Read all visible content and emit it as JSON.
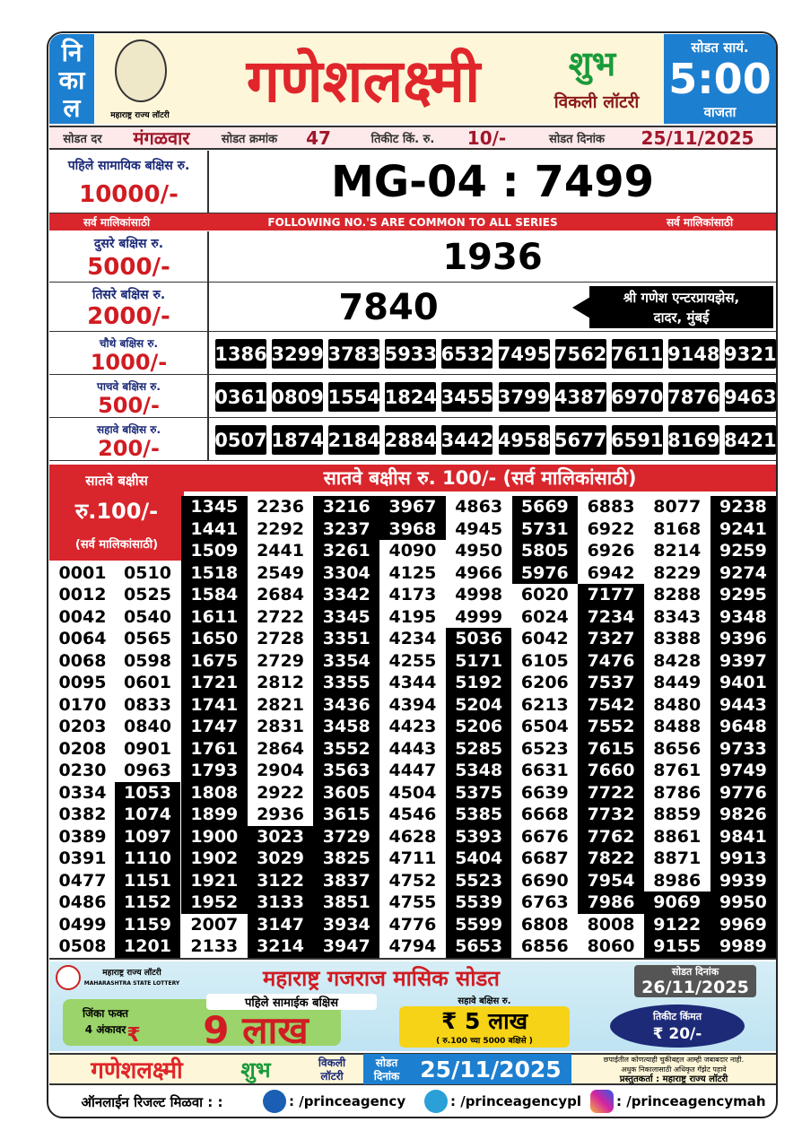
{
  "header": {
    "nikal": [
      "नि",
      "का",
      "ल"
    ],
    "logo_caption": "महाराष्ट्र राज्य लॉटरी",
    "title": "गणेशलक्ष्मी",
    "shubh": "शुभ",
    "weekly": "विकली लॉटरी",
    "draw_time_label": "सोडत सायं.",
    "draw_time": "5:00",
    "draw_time_suffix": "वाजता"
  },
  "info": [
    {
      "label": "सोडत दर",
      "value": "मंगळवार"
    },
    {
      "label": "सोडत क्रमांक",
      "value": "47"
    },
    {
      "label": "तिकीट किं. रु.",
      "value": "10/-"
    },
    {
      "label": "सोडत दिनांक",
      "value": "25/11/2025"
    }
  ],
  "banner": [
    "सर्व मालिकांसाठी",
    "FOLLOWING NO.'S ARE COMMON TO ALL SERIES",
    "सर्व मालिकांसाठी"
  ],
  "prizes": [
    {
      "label": "पहिले सामायिक बक्षिस रु.",
      "amount": "10000/-",
      "number": "MG-04 : 7499"
    },
    {
      "label": "दुसरे बक्षिस रु.",
      "amount": "5000/-",
      "number": "1936"
    },
    {
      "label": "तिसरे बक्षिस रु.",
      "amount": "2000/-",
      "number": "7840",
      "agent": [
        "श्री गणेश एन्टरप्रायझेस,",
        "दादर, मुंबई"
      ]
    },
    {
      "label": "चौथे बक्षिस रु.",
      "amount": "1000/-",
      "numbers": [
        "1386",
        "3299",
        "3783",
        "5933",
        "6532",
        "7495",
        "7562",
        "7611",
        "9148",
        "9321"
      ]
    },
    {
      "label": "पाचवे बक्षिस रु.",
      "amount": "500/-",
      "numbers": [
        "0361",
        "0809",
        "1554",
        "1824",
        "3455",
        "3799",
        "4387",
        "6970",
        "7876",
        "9463"
      ]
    },
    {
      "label": "सहावे बक्षिस रु.",
      "amount": "200/-",
      "numbers": [
        "0507",
        "1874",
        "2184",
        "2884",
        "3442",
        "4958",
        "5677",
        "6591",
        "8169",
        "8421"
      ]
    }
  ],
  "seventh_prize": {
    "title": "सातवे बक्षीस रु. 100/- (सर्व मालिकांसाठी)",
    "label": [
      "सातवे बक्षीस",
      "रु.100/-",
      "(सर्व मालिकांसाठी)"
    ],
    "columns": [
      [
        "0001",
        "0012",
        "0042",
        "0064",
        "0068",
        "0095",
        "0170",
        "0203",
        "0208",
        "0230",
        "0334",
        "0382",
        "0389",
        "0391",
        "0477",
        "0486",
        "0499",
        "0508"
      ],
      [
        "0510",
        "0525",
        "0540",
        "0565",
        "0598",
        "0601",
        "0833",
        "0840",
        "0901",
        "0963",
        "1053",
        "1074",
        "1097",
        "1110",
        "1151",
        "1152",
        "1159",
        "1201"
      ],
      [
        "1345",
        "1441",
        "1509",
        "1518",
        "1584",
        "1611",
        "1650",
        "1675",
        "1721",
        "1741",
        "1747",
        "1761",
        "1793",
        "1808",
        "1899",
        "1900",
        "1902",
        "1921",
        "1952",
        "2007",
        "2133"
      ],
      [
        "2236",
        "2292",
        "2441",
        "2549",
        "2684",
        "2722",
        "2728",
        "2729",
        "2812",
        "2821",
        "2831",
        "2864",
        "2904",
        "2922",
        "2936",
        "3023",
        "3029",
        "3122",
        "3133",
        "3147",
        "3214"
      ],
      [
        "3216",
        "3237",
        "3261",
        "3304",
        "3342",
        "3345",
        "3351",
        "3354",
        "3355",
        "3436",
        "3458",
        "3552",
        "3563",
        "3605",
        "3615",
        "3729",
        "3825",
        "3837",
        "3851",
        "3934",
        "3947"
      ],
      [
        "3967",
        "3968",
        "4090",
        "4125",
        "4173",
        "4195",
        "4234",
        "4255",
        "4344",
        "4394",
        "4423",
        "4443",
        "4447",
        "4504",
        "4546",
        "4628",
        "4711",
        "4752",
        "4755",
        "4776",
        "4794"
      ],
      [
        "4863",
        "4945",
        "4950",
        "4966",
        "4998",
        "4999",
        "5036",
        "5171",
        "5192",
        "5204",
        "5206",
        "5285",
        "5348",
        "5375",
        "5385",
        "5393",
        "5404",
        "5523",
        "5539",
        "5599",
        "5653"
      ],
      [
        "5669",
        "5731",
        "5805",
        "5976",
        "6020",
        "6024",
        "6042",
        "6105",
        "6206",
        "6213",
        "6504",
        "6523",
        "6631",
        "6639",
        "6668",
        "6676",
        "6687",
        "6690",
        "6763",
        "6808",
        "6856"
      ],
      [
        "6883",
        "6922",
        "6926",
        "6942",
        "7177",
        "7234",
        "7327",
        "7476",
        "7537",
        "7542",
        "7552",
        "7615",
        "7660",
        "7722",
        "7732",
        "7762",
        "7822",
        "7954",
        "7986",
        "8008",
        "8060"
      ],
      [
        "8077",
        "8168",
        "8214",
        "8229",
        "8288",
        "8343",
        "8388",
        "8428",
        "8449",
        "8480",
        "8488",
        "8656",
        "8761",
        "8786",
        "8859",
        "8861",
        "8871",
        "8986",
        "9069",
        "9122",
        "9155"
      ],
      [
        "9238",
        "9241",
        "9259",
        "9274",
        "9295",
        "9348",
        "9396",
        "9397",
        "9401",
        "9443",
        "9648",
        "9733",
        "9749",
        "9776",
        "9826",
        "9841",
        "9913",
        "9939",
        "9950",
        "9969",
        "9989"
      ]
    ]
  },
  "ad": {
    "logo_mr": "महाराष्ट्र राज्य लॉटरी",
    "logo_en": "MAHARASHTRA STATE LOTTERY",
    "title": "महाराष्ट्र गजराज मासिक सोडत",
    "date_label": "सोडत दिनांक",
    "date": "26/11/2025",
    "win_line": [
      "जिंका फक्त",
      "4 अंकावर"
    ],
    "first_prize_label": "पहिले सामाईक बक्षिस",
    "rupee": "₹",
    "first_prize": "9 लाख",
    "sixth_prize_label": "सहावे बक्षिस रु.",
    "sixth_prize": "₹ 5 लाख",
    "sixth_prize_note": "( रु.100 च्या 5000 बक्षिसे )",
    "price_label": "तिकीट किंमत",
    "price": "₹ 20/-"
  },
  "footer": {
    "title": "गणेशलक्ष्मी",
    "shubh": "शुभ",
    "weekly": [
      "विकली",
      "लॉटरी"
    ],
    "date_label": [
      "सोडत",
      "दिनांक"
    ],
    "date": "25/11/2025",
    "disclaimer": [
      "छपाईतील कोणत्याही चुकीबद्दल आम्ही जबाबदार नाही.",
      "अधुक निकालासाठी अधिकृत गॅझेट पहावे"
    ],
    "presenter": "प्रस्तुतकर्ता : महाराष्ट्र राज्य लॉटरी"
  },
  "social": {
    "label": "ऑनलाईन रिजल्ट मिळवा : :",
    "facebook": ": /princeagency",
    "telegram": ": /princeagencypl",
    "instagram": ": /princeagencymah"
  }
}
